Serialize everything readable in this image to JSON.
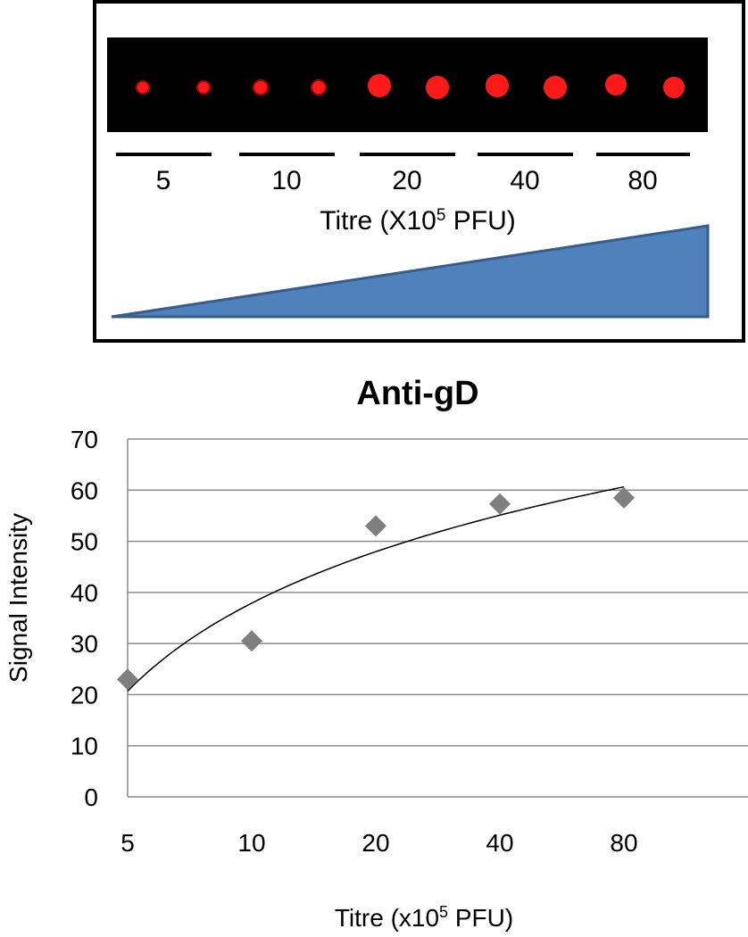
{
  "panel": {
    "labels": [
      "5",
      "10",
      "20",
      "40",
      "80"
    ],
    "axis_label": {
      "text": "Titre (X10",
      "sup": "5",
      "after": " PFU)"
    }
  },
  "chart_data": {
    "type": "scatter",
    "title": "Anti-gD",
    "y_label": "Signal Intensity",
    "x_label": {
      "text": "Titre (x10",
      "sup": "5",
      "after": "  PFU)"
    },
    "categories": [
      "5",
      "10",
      "20",
      "40",
      "80"
    ],
    "values": [
      23,
      30.5,
      53,
      57.3,
      58.5
    ],
    "color": "#7f7f7f",
    "ylim": [
      0,
      70
    ],
    "yticks": [
      0,
      10,
      20,
      30,
      40,
      50,
      60,
      70
    ],
    "grid": true,
    "trendline": "logarithmic"
  }
}
